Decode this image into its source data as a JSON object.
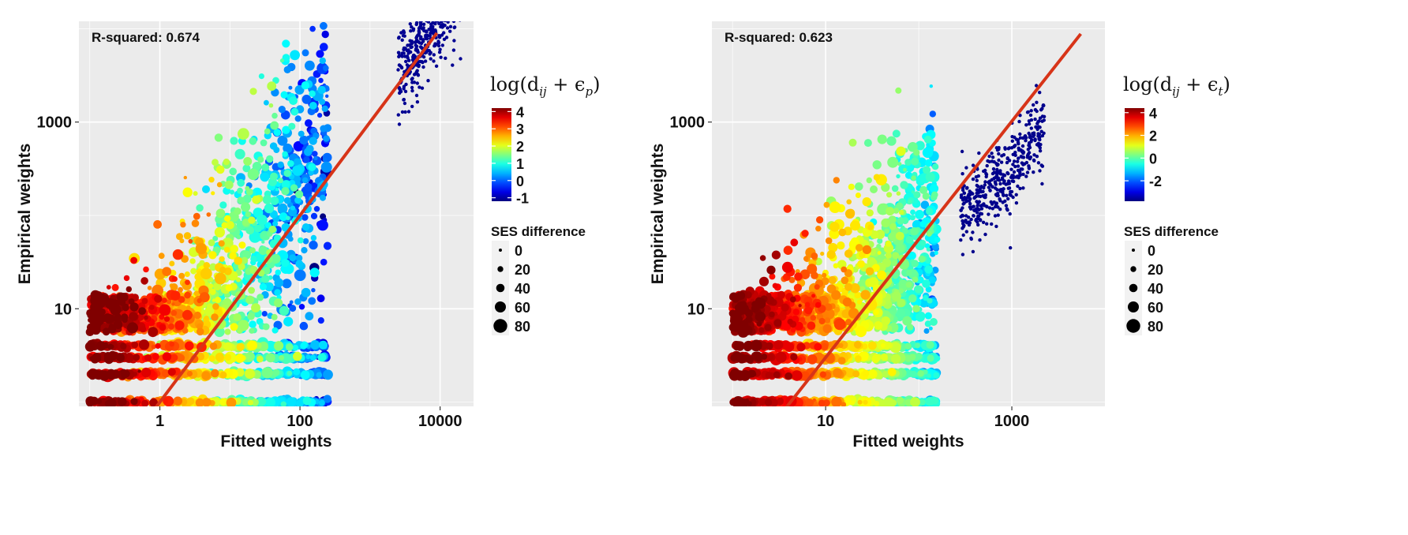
{
  "chart_data": [
    {
      "type": "scatter",
      "annotation": "R-squared: 0.674",
      "xlabel": "Fitted weights",
      "ylabel": "Empirical weights",
      "xscale": "log10",
      "yscale": "log10",
      "xlim": [
        0.07,
        30000
      ],
      "ylim": [
        0.9,
        12000
      ],
      "x_ticks": [
        1,
        100,
        10000
      ],
      "x_tick_labels": [
        "1",
        "100",
        "10000"
      ],
      "y_ticks": [
        10,
        1000
      ],
      "y_tick_labels": [
        "10",
        "1000"
      ],
      "grid": true,
      "fit_line": {
        "color": "#d73418",
        "x": [
          0.6,
          9000
        ],
        "y": [
          0.6,
          9000
        ]
      },
      "color_legend": {
        "title_tex": "log(d_ij + ε_p)",
        "title_base": "log(d",
        "title_sub1": "ij",
        "title_mid": " + ϵ",
        "title_sub2": "p",
        "title_end": ")",
        "range": [
          -1.2,
          4.2
        ],
        "tick_values": [
          4,
          3,
          2,
          1,
          0,
          -1
        ],
        "tick_labels": [
          "4",
          "3",
          "2",
          "1",
          "0",
          "-1"
        ]
      },
      "size_legend": {
        "title": "SES difference",
        "values": [
          0,
          20,
          40,
          60,
          80
        ],
        "labels": [
          "0",
          "20",
          "40",
          "60",
          "80"
        ]
      },
      "generator": {
        "seed": 17,
        "n": 2400,
        "slope": 1.0,
        "intercept": 0.0,
        "xmin": -1.0,
        "xmax": 2.4,
        "yspread": 0.65,
        "colorLo": -1,
        "colorHi": 4.2,
        "blueTail": 3.5
      }
    },
    {
      "type": "scatter",
      "annotation": "R-squared: 0.623",
      "xlabel": "Fitted weights",
      "ylabel": "Empirical weights",
      "xscale": "log10",
      "yscale": "log10",
      "xlim": [
        0.6,
        10000
      ],
      "ylim": [
        0.9,
        12000
      ],
      "x_ticks": [
        10,
        1000
      ],
      "x_tick_labels": [
        "10",
        "1000"
      ],
      "y_ticks": [
        10,
        1000
      ],
      "y_tick_labels": [
        "10",
        "1000"
      ],
      "grid": true,
      "fit_line": {
        "color": "#d73418",
        "x": [
          2.8,
          5500
        ],
        "y": [
          0.6,
          8800
        ]
      },
      "color_legend": {
        "title_tex": "log(d_ij + ε_t)",
        "title_base": "log(d",
        "title_sub1": "ij",
        "title_mid": " + ϵ",
        "title_sub2": "t",
        "title_end": ")",
        "range": [
          -3.8,
          4.4
        ],
        "tick_values": [
          4,
          2,
          0,
          -2
        ],
        "tick_labels": [
          "4",
          "2",
          "0",
          "-2"
        ]
      },
      "size_legend": {
        "title": "SES difference",
        "values": [
          0,
          20,
          40,
          60,
          80
        ],
        "labels": [
          "0",
          "20",
          "40",
          "60",
          "80"
        ]
      },
      "generator": {
        "seed": 29,
        "n": 2400,
        "slope": 1.0,
        "intercept": -0.6,
        "xmin": 0.0,
        "xmax": 2.2,
        "yspread": 0.6,
        "colorLo": -3.5,
        "colorHi": 4.4,
        "blueTail": 2.55
      }
    }
  ]
}
